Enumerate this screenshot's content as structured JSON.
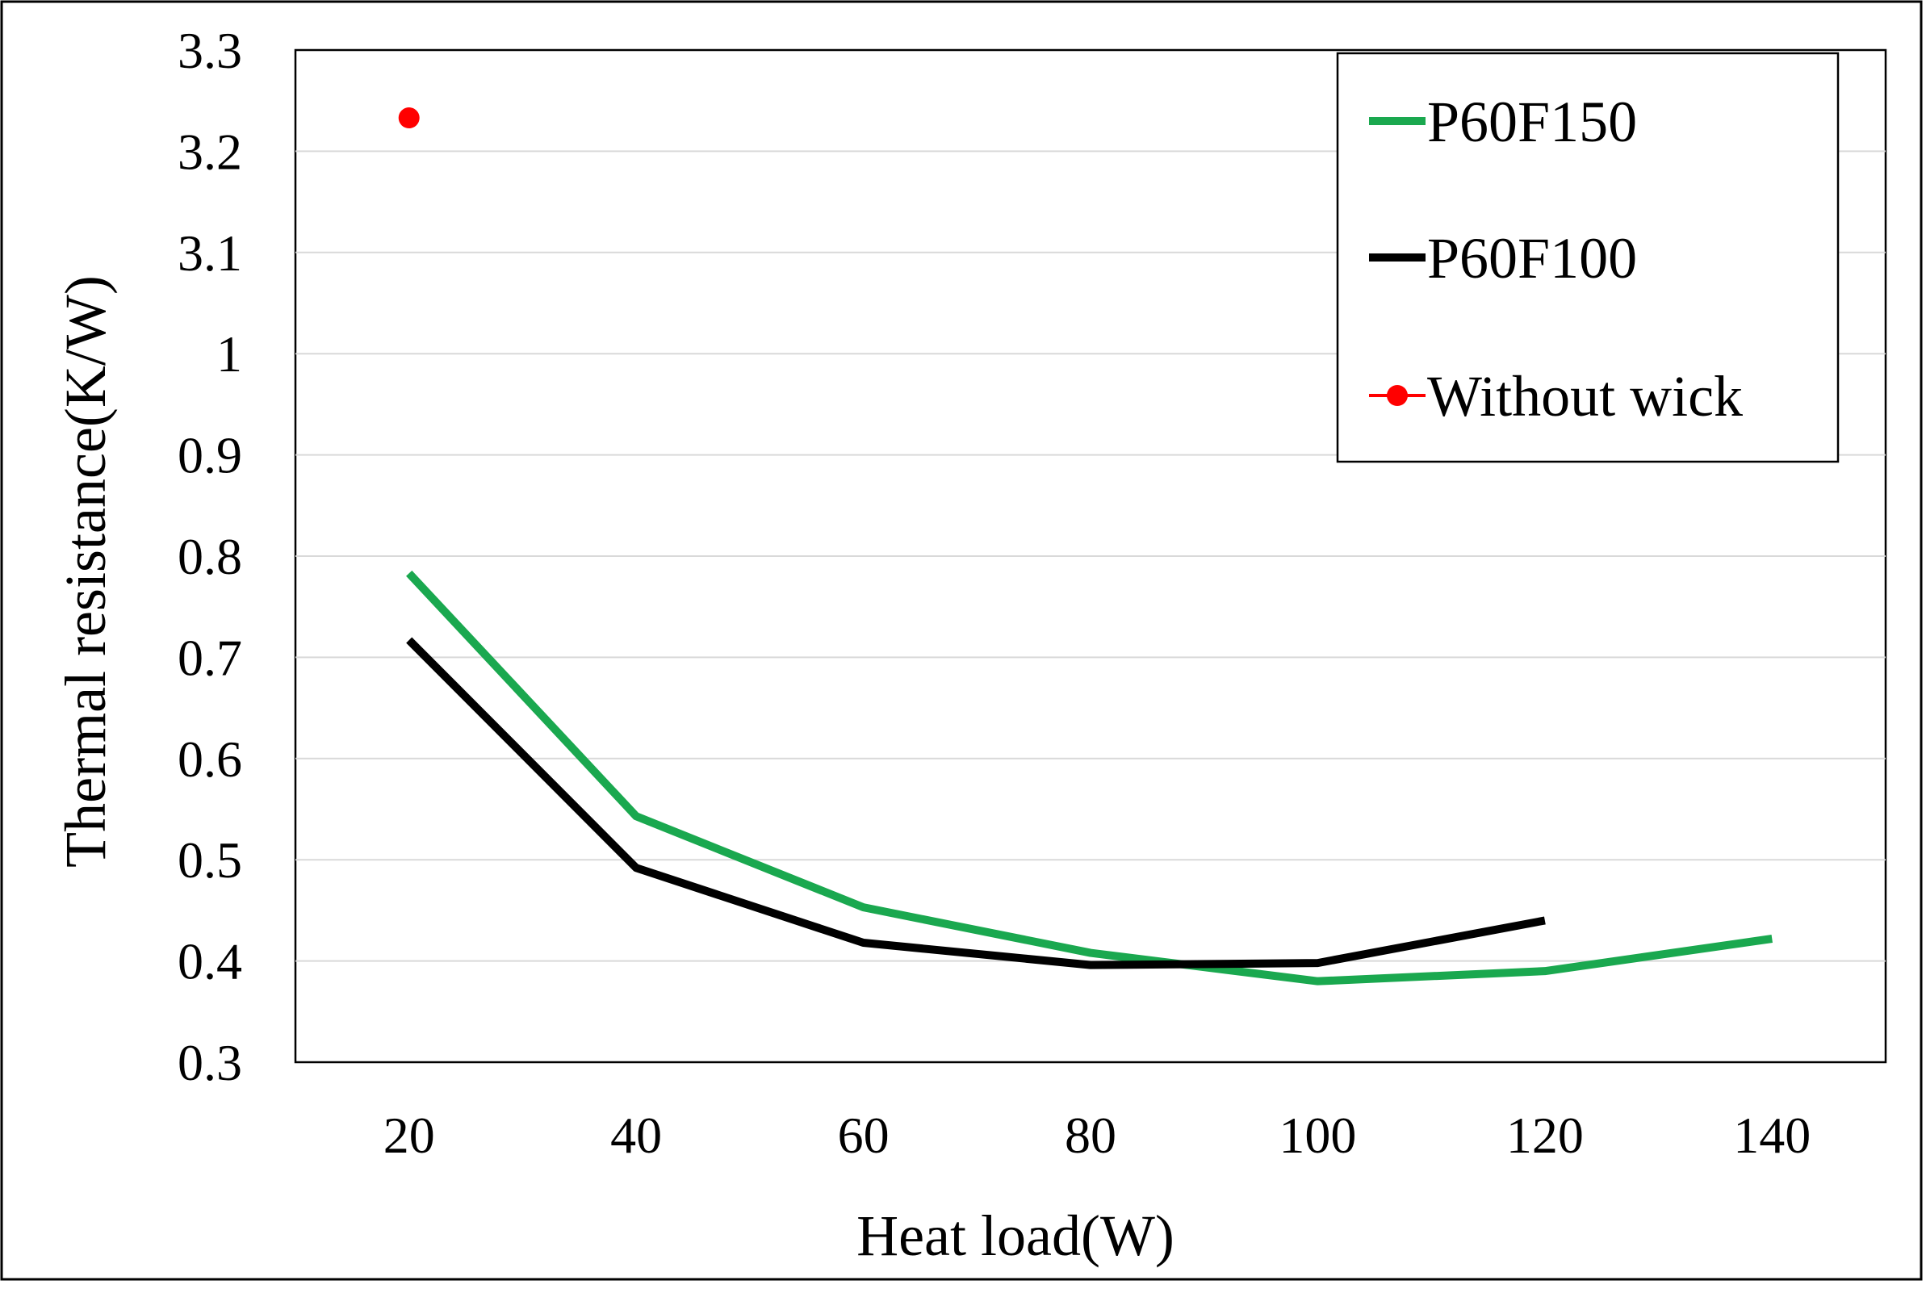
{
  "chart_data": {
    "type": "line",
    "title": "",
    "xlabel": "Heat load(W)",
    "ylabel": "Thermal resistance(K/W)",
    "x_ticks": [
      20,
      40,
      60,
      80,
      100,
      120,
      140
    ],
    "x_tick_labels": [
      "20",
      "40",
      "60",
      "80",
      "100",
      "120",
      "140"
    ],
    "y_tick_labels": [
      "0.3",
      "0.4",
      "0.5",
      "0.6",
      "0.7",
      "0.8",
      "0.9",
      "1",
      "3.1",
      "3.2",
      "3.3"
    ],
    "y_axis_note": "broken axis: linear 0.3–1 then jumps to 3.1–3.3, equal spacing per tick label",
    "grid": true,
    "legend_position": "top-right",
    "series": [
      {
        "name": "P60F150",
        "color": "#1aa84f",
        "marker": "none",
        "x": [
          20,
          40,
          60,
          80,
          100,
          120,
          140
        ],
        "y": [
          0.783,
          0.543,
          0.453,
          0.408,
          0.38,
          0.39,
          0.422
        ]
      },
      {
        "name": "P60F100",
        "color": "#000000",
        "marker": "none",
        "x": [
          20,
          40,
          60,
          80,
          100,
          120
        ],
        "y": [
          0.717,
          0.492,
          0.418,
          0.396,
          0.398,
          0.44
        ]
      },
      {
        "name": "Without wick",
        "color": "#ff0000",
        "marker": "circle",
        "x": [
          20
        ],
        "y": [
          3.233
        ]
      }
    ]
  }
}
